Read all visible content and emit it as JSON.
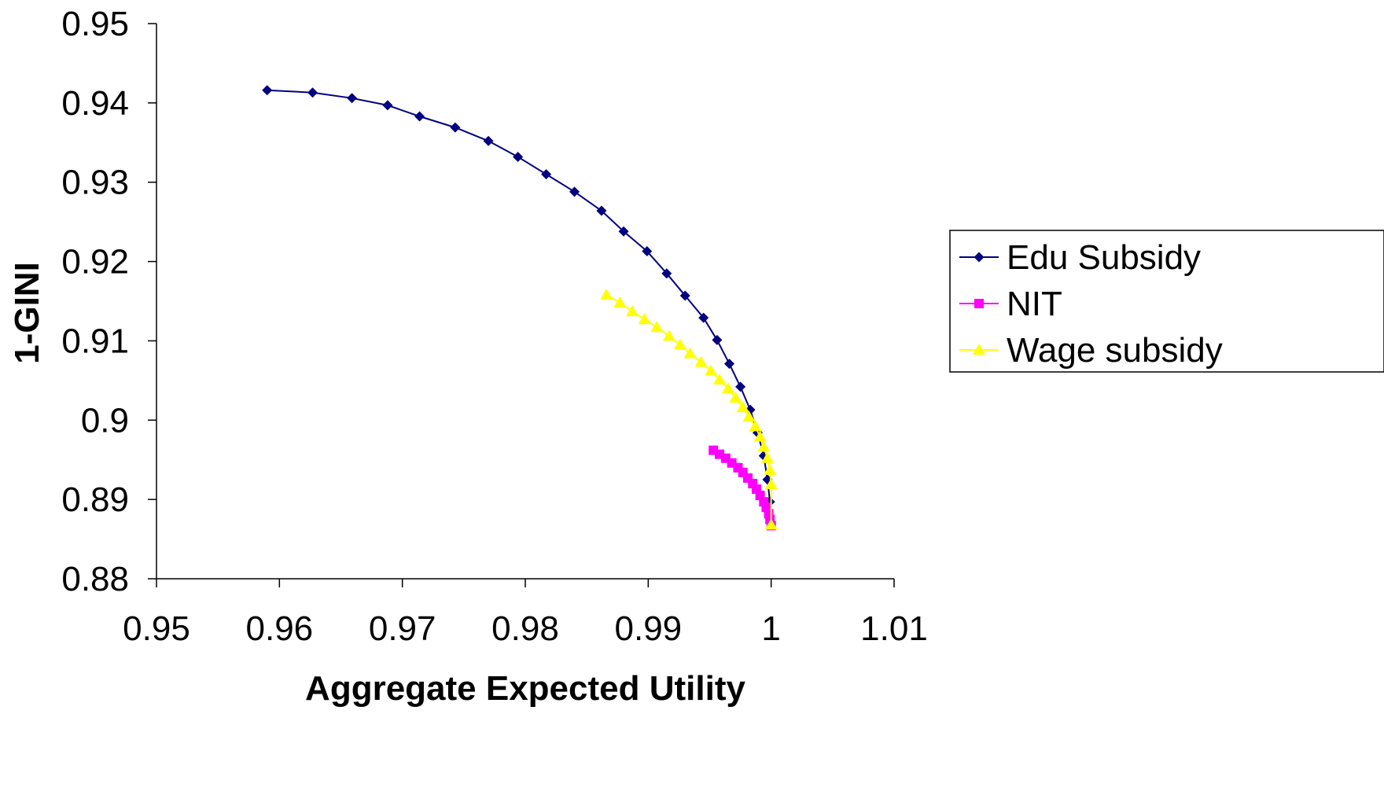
{
  "chart_data": {
    "type": "scatter",
    "xlabel": "Aggregate Expected Utility",
    "ylabel": "1-GINI",
    "xlim": [
      0.95,
      1.01
    ],
    "ylim": [
      0.88,
      0.95
    ],
    "xticks": [
      "0.95",
      "0.96",
      "0.97",
      "0.98",
      "0.99",
      "1",
      "1.01"
    ],
    "yticks": [
      "0.88",
      "0.89",
      "0.9",
      "0.91",
      "0.92",
      "0.93",
      "0.94",
      "0.95"
    ],
    "grid": false,
    "legend_position": "right",
    "series": [
      {
        "name": "Edu Subsidy",
        "color": "#000080",
        "marker": "diamond",
        "line": true,
        "x": [
          0.959,
          0.9627,
          0.9659,
          0.9688,
          0.9714,
          0.9743,
          0.977,
          0.9794,
          0.9817,
          0.984,
          0.9862,
          0.988,
          0.9899,
          0.9915,
          0.993,
          0.9945,
          0.9956,
          0.9966,
          0.9975,
          0.9983,
          0.9989,
          0.9994,
          0.9997,
          0.9999,
          1.0
        ],
        "y": [
          0.9416,
          0.9413,
          0.9406,
          0.9397,
          0.9383,
          0.9369,
          0.9352,
          0.9332,
          0.931,
          0.9288,
          0.9264,
          0.9238,
          0.9213,
          0.9185,
          0.9157,
          0.9129,
          0.9101,
          0.9071,
          0.9042,
          0.9013,
          0.8984,
          0.8955,
          0.8925,
          0.8897,
          0.887
        ]
      },
      {
        "name": "NIT",
        "color": "#FF00FF",
        "marker": "square",
        "line": true,
        "x": [
          0.9953,
          0.9958,
          0.9963,
          0.9968,
          0.9973,
          0.9977,
          0.9981,
          0.9985,
          0.9988,
          0.9991,
          0.9994,
          0.9996,
          0.9998,
          0.9999,
          1.0
        ],
        "y": [
          0.8962,
          0.8957,
          0.8952,
          0.8946,
          0.894,
          0.8934,
          0.8927,
          0.892,
          0.8913,
          0.8905,
          0.8897,
          0.889,
          0.8882,
          0.8875,
          0.8867
        ]
      },
      {
        "name": "Wage subsidy",
        "color": "#FFFF00",
        "marker": "triangle",
        "line": true,
        "x": [
          0.9866,
          0.9877,
          0.9887,
          0.9897,
          0.9907,
          0.9917,
          0.9926,
          0.9934,
          0.9943,
          0.9951,
          0.9958,
          0.9965,
          0.9971,
          0.9977,
          0.9982,
          0.9987,
          0.9991,
          0.9994,
          0.9997,
          0.9999,
          1.0,
          1.0
        ],
        "y": [
          0.9158,
          0.9148,
          0.9137,
          0.9127,
          0.9117,
          0.9106,
          0.9095,
          0.9084,
          0.9073,
          0.9062,
          0.9051,
          0.904,
          0.9028,
          0.9016,
          0.9004,
          0.8992,
          0.8979,
          0.8966,
          0.8952,
          0.8937,
          0.8919,
          0.8868
        ]
      }
    ]
  }
}
